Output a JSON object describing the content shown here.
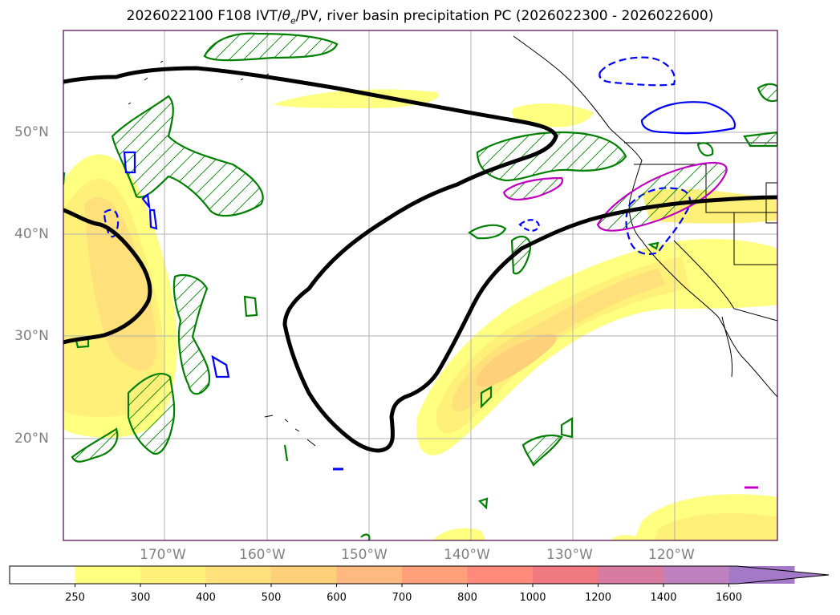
{
  "title": "2026022100 F108 IVT/θe/PV, river basin precipitation PC (2026022300 - 2026022600)",
  "title_parts": {
    "prefix": "2026022100 F108 IVT/",
    "theta": "θ",
    "theta_sub": "e",
    "suffix": "/PV, river basin precipitation PC (2026022300 - 2026022600)"
  },
  "latitude_labels": [
    "50°N",
    "40°N",
    "30°N",
    "20°N"
  ],
  "longitude_labels": [
    "170°W",
    "160°W",
    "150°W",
    "140°W",
    "130°W",
    "120°W"
  ],
  "colorbar": {
    "levels": [
      "250",
      "300",
      "400",
      "500",
      "600",
      "700",
      "800",
      "1000",
      "1200",
      "1400",
      "1600"
    ],
    "colors": [
      "#ffffff",
      "#ffff80",
      "#fff07a",
      "#ffe07a",
      "#ffd07a",
      "#ffb880",
      "#ffa07a",
      "#ff8a7a",
      "#f07a80",
      "#d97aa0",
      "#bf80c0",
      "#a47ac8"
    ],
    "extend": "max"
  },
  "colors": {
    "ivt_contour": "#000000",
    "green_contour": "#008000",
    "blue_contour": "#0000ff",
    "magenta_contour": "#c000c0",
    "grid": "#b0b0b0",
    "coast": "#000000"
  }
}
